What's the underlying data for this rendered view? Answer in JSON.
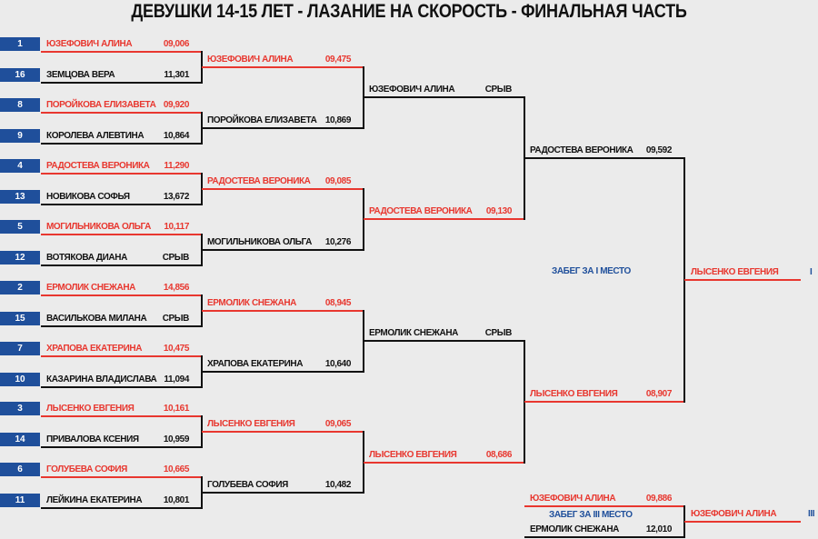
{
  "title": "ДЕВУШКИ 14-15 ЛЕТ - ЛАЗАНИЕ НА СКОРОСТЬ - ФИНАЛЬНАЯ ЧАСТЬ",
  "colors": {
    "winner": "#e8372f",
    "loser": "#111111",
    "seed_box": "#1f4f9b",
    "label": "#1f4f9b"
  },
  "round1": [
    {
      "seed": "1",
      "name": "ЮЗЕФОВИЧ АЛИНА",
      "time": "09,006",
      "winner": true
    },
    {
      "seed": "16",
      "name": "ЗЕМЦОВА ВЕРА",
      "time": "11,301",
      "winner": false
    },
    {
      "seed": "8",
      "name": "ПОРОЙКОВА ЕЛИЗАВЕТА",
      "time": "09,920",
      "winner": true
    },
    {
      "seed": "9",
      "name": "КОРОЛЕВА АЛЕВТИНА",
      "time": "10,864",
      "winner": false
    },
    {
      "seed": "4",
      "name": "РАДОСТЕВА ВЕРОНИКА",
      "time": "11,290",
      "winner": true
    },
    {
      "seed": "13",
      "name": "НОВИКОВА СОФЬЯ",
      "time": "13,672",
      "winner": false
    },
    {
      "seed": "5",
      "name": "МОГИЛЬНИКОВА ОЛЬГА",
      "time": "10,117",
      "winner": true
    },
    {
      "seed": "12",
      "name": "ВОТЯКОВА ДИАНА",
      "time": "СРЫВ",
      "winner": false
    },
    {
      "seed": "2",
      "name": "ЕРМОЛИК СНЕЖАНА",
      "time": "14,856",
      "winner": true
    },
    {
      "seed": "15",
      "name": "ВАСИЛЬКОВА МИЛАНА",
      "time": "СРЫВ",
      "winner": false
    },
    {
      "seed": "7",
      "name": "ХРАПОВА ЕКАТЕРИНА",
      "time": "10,475",
      "winner": true
    },
    {
      "seed": "10",
      "name": "КАЗАРИНА ВЛАДИСЛАВА",
      "time": "11,094",
      "winner": false
    },
    {
      "seed": "3",
      "name": "ЛЫСЕНКО ЕВГЕНИЯ",
      "time": "10,161",
      "winner": true
    },
    {
      "seed": "14",
      "name": "ПРИВАЛОВА КСЕНИЯ",
      "time": "10,959",
      "winner": false
    },
    {
      "seed": "6",
      "name": "ГОЛУБЕВА СОФИЯ",
      "time": "10,665",
      "winner": true
    },
    {
      "seed": "11",
      "name": "ЛЕЙКИНА ЕКАТЕРИНА",
      "time": "10,801",
      "winner": false
    }
  ],
  "round2": [
    {
      "name": "ЮЗЕФОВИЧ АЛИНА",
      "time": "09,475",
      "winner": true
    },
    {
      "name": "ПОРОЙКОВА ЕЛИЗАВЕТА",
      "time": "10,869",
      "winner": false
    },
    {
      "name": "РАДОСТЕВА ВЕРОНИКА",
      "time": "09,085",
      "winner": true
    },
    {
      "name": "МОГИЛЬНИКОВА ОЛЬГА",
      "time": "10,276",
      "winner": false
    },
    {
      "name": "ЕРМОЛИК СНЕЖАНА",
      "time": "08,945",
      "winner": true
    },
    {
      "name": "ХРАПОВА ЕКАТЕРИНА",
      "time": "10,640",
      "winner": false
    },
    {
      "name": "ЛЫСЕНКО ЕВГЕНИЯ",
      "time": "09,065",
      "winner": true
    },
    {
      "name": "ГОЛУБЕВА СОФИЯ",
      "time": "10,482",
      "winner": false
    }
  ],
  "round3": [
    {
      "name": "ЮЗЕФОВИЧ АЛИНА",
      "time": "СРЫВ",
      "winner": false
    },
    {
      "name": "РАДОСТЕВА ВЕРОНИКА",
      "time": "09,130",
      "winner": true
    },
    {
      "name": "ЕРМОЛИК СНЕЖАНА",
      "time": "СРЫВ",
      "winner": false
    },
    {
      "name": "ЛЫСЕНКО ЕВГЕНИЯ",
      "time": "08,686",
      "winner": true
    }
  ],
  "round4": [
    {
      "name": "РАДОСТЕВА ВЕРОНИКА",
      "time": "09,592",
      "winner": false
    },
    {
      "name": "ЛЫСЕНКО ЕВГЕНИЯ",
      "time": "08,907",
      "winner": true
    }
  ],
  "final": {
    "label": "ЗАБЕГ ЗА I МЕСТО",
    "winner": "ЛЫСЕНКО ЕВГЕНИЯ",
    "place": "I"
  },
  "third_place": {
    "label": "ЗАБЕГ ЗА III МЕСТО",
    "entries": [
      {
        "name": "ЮЗЕФОВИЧ АЛИНА",
        "time": "09,886",
        "winner": true
      },
      {
        "name": "ЕРМОЛИК СНЕЖАНА",
        "time": "12,010",
        "winner": false
      }
    ],
    "winner": "ЮЗЕФОВИЧ АЛИНА",
    "place": "III"
  }
}
